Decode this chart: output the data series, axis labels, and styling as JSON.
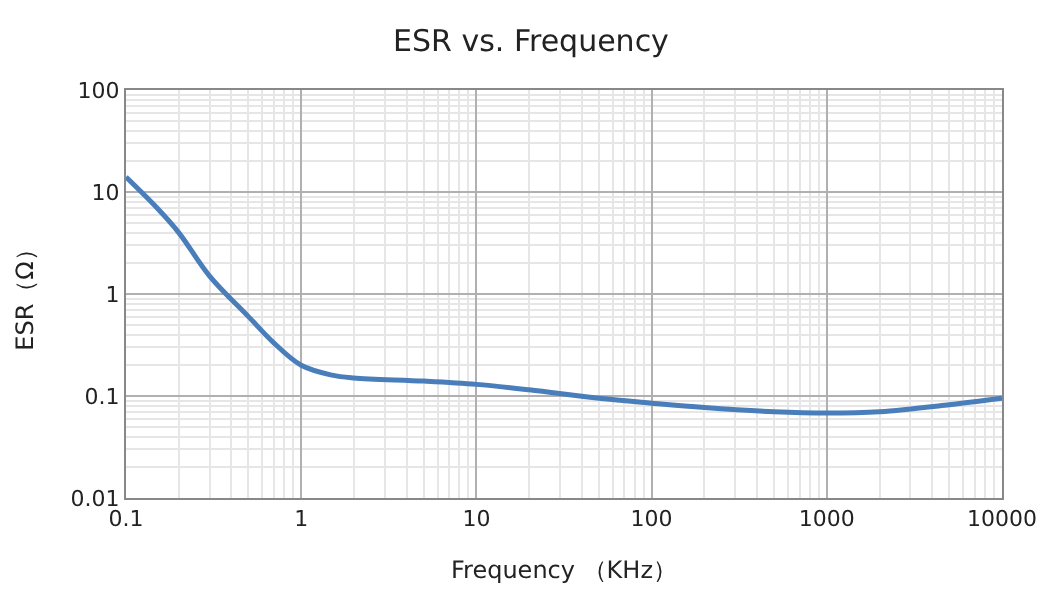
{
  "chart_data": {
    "type": "line",
    "title": "ESR vs. Frequency",
    "xlabel": "Frequency （KHz）",
    "ylabel": "ESR（Ω）",
    "log": "xy",
    "grid": true,
    "legend": false,
    "marker": "none",
    "line_style": "solid",
    "xlim": [
      0.1,
      10000
    ],
    "xticks": [
      0.1,
      1,
      10,
      100,
      1000,
      10000
    ],
    "ylim": [
      0.01,
      100
    ],
    "yticks": [
      0.01,
      0.1,
      1,
      10,
      100
    ],
    "x": [
      0.1,
      0.15,
      0.2,
      0.3,
      0.5,
      0.7,
      1,
      1.5,
      2,
      5,
      10,
      20,
      50,
      100,
      200,
      500,
      1000,
      2000,
      5000,
      10000
    ],
    "series": [
      {
        "color": "#4a7ebb",
        "values": [
          14,
          7,
          4,
          1.5,
          0.6,
          0.33,
          0.2,
          0.16,
          0.15,
          0.14,
          0.13,
          0.115,
          0.095,
          0.085,
          0.077,
          0.07,
          0.068,
          0.07,
          0.082,
          0.095
        ]
      }
    ]
  }
}
